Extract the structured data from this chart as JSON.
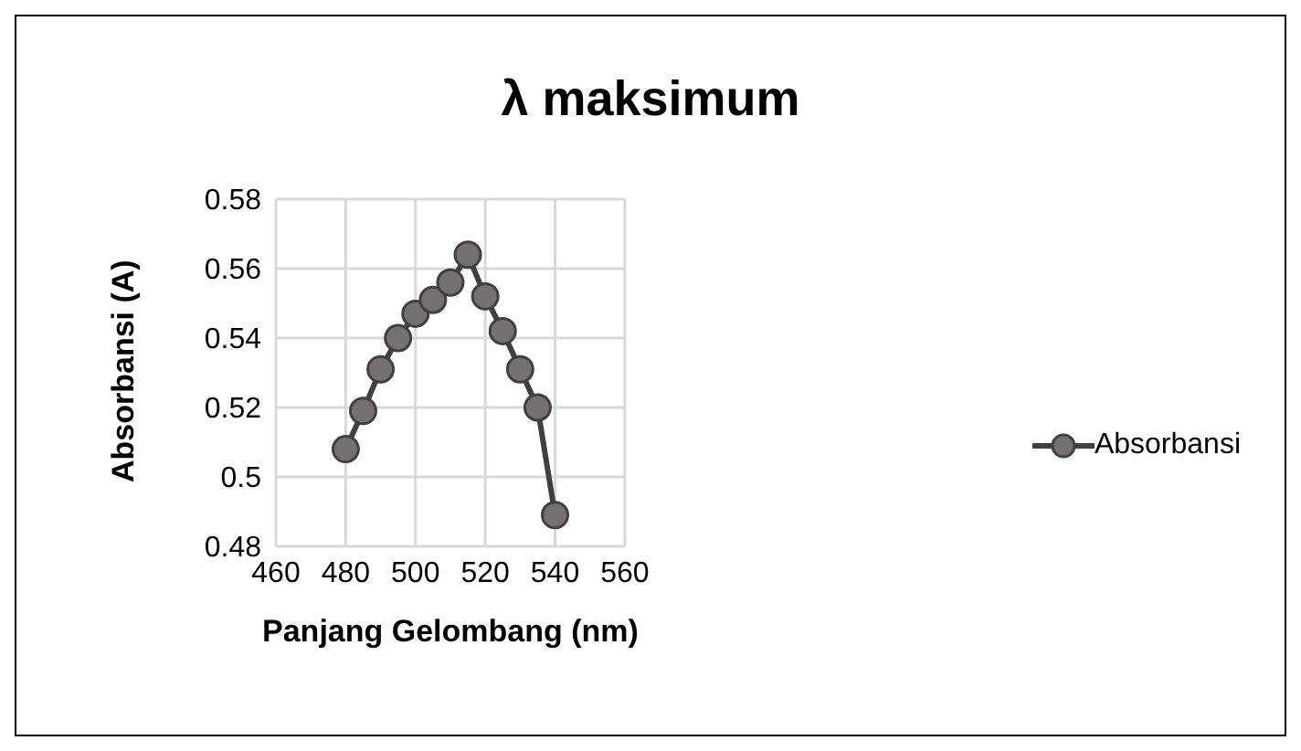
{
  "chart_data": {
    "type": "line",
    "title": "λ maksimum",
    "xlabel": "Panjang Gelombang (nm)",
    "ylabel": "Absorbansi (A)",
    "x": [
      480,
      485,
      490,
      495,
      500,
      505,
      510,
      515,
      520,
      525,
      530,
      535,
      540
    ],
    "series": [
      {
        "name": "Absorbansi",
        "color": "#404040",
        "values": [
          0.508,
          0.519,
          0.531,
          0.54,
          0.547,
          0.551,
          0.556,
          0.564,
          0.552,
          0.542,
          0.531,
          0.52,
          0.489
        ]
      }
    ],
    "xlim": [
      460,
      560
    ],
    "xticks": [
      460,
      480,
      500,
      520,
      540,
      560
    ],
    "ylim": [
      0.48,
      0.58
    ],
    "yticks": [
      0.48,
      0.5,
      0.52,
      0.54,
      0.56,
      0.58
    ],
    "grid": true,
    "legend": "right",
    "marker": "circle",
    "line_style": "solid"
  }
}
